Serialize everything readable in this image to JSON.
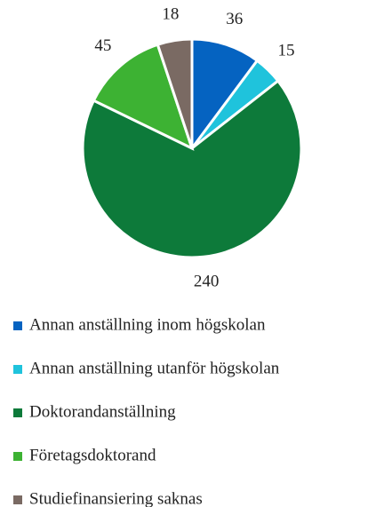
{
  "chart_data": {
    "type": "pie",
    "categories": [
      "Annan anställning inom högskolan",
      "Annan anställning utanför högskolan",
      "Doktorandanställning",
      "Företagsdoktorand",
      "Studiefinansiering saknas"
    ],
    "values": [
      36,
      15,
      240,
      45,
      18
    ],
    "colors": [
      "#0563c1",
      "#1fc3dc",
      "#0d7a3a",
      "#3db233",
      "#7a6a63"
    ],
    "legend": "bottom"
  }
}
